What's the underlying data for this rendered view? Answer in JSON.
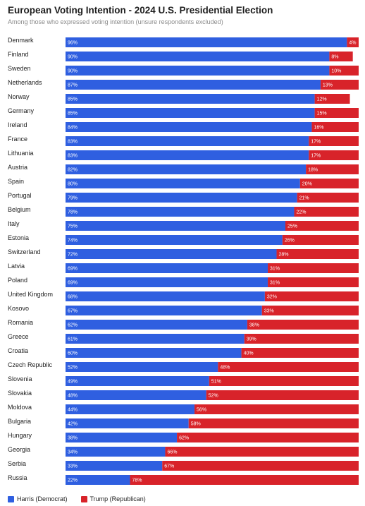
{
  "header": {
    "title": "European Voting Intention - 2024 U.S. Presidential Election",
    "subtitle": "Among those who expressed voting intention (unsure respondents excluded)"
  },
  "colors": {
    "harris": "#2f5fe0",
    "trump": "#d8232a"
  },
  "legend": {
    "harris": "Harris (Democrat)",
    "trump": "Trump (Republican)"
  },
  "chart_data": {
    "type": "bar",
    "orientation": "horizontal",
    "stacked": true,
    "title": "European Voting Intention - 2024 U.S. Presidential Election",
    "subtitle": "Among those who expressed voting intention (unsure respondents excluded)",
    "categories": [
      "Denmark",
      "Finland",
      "Sweden",
      "Netherlands",
      "Norway",
      "Germany",
      "Ireland",
      "France",
      "Lithuania",
      "Austria",
      "Spain",
      "Portugal",
      "Belgium",
      "Italy",
      "Estonia",
      "Switzerland",
      "Latvia",
      "Poland",
      "United Kingdom",
      "Kosovo",
      "Romania",
      "Greece",
      "Croatia",
      "Czech Republic",
      "Slovenia",
      "Slovakia",
      "Moldova",
      "Bulgaria",
      "Hungary",
      "Georgia",
      "Serbia",
      "Russia"
    ],
    "series": [
      {
        "name": "Harris (Democrat)",
        "values": [
          96,
          90,
          90,
          87,
          85,
          85,
          84,
          83,
          83,
          82,
          80,
          79,
          78,
          75,
          74,
          72,
          69,
          69,
          68,
          67,
          62,
          61,
          60,
          52,
          49,
          48,
          44,
          42,
          38,
          34,
          33,
          22
        ]
      },
      {
        "name": "Trump (Republican)",
        "values": [
          4,
          8,
          10,
          13,
          12,
          15,
          16,
          17,
          17,
          18,
          20,
          21,
          22,
          25,
          26,
          28,
          31,
          31,
          32,
          33,
          38,
          39,
          40,
          48,
          51,
          52,
          56,
          58,
          62,
          66,
          67,
          78
        ]
      }
    ],
    "labels": {
      "harris": [
        "96%",
        "90%",
        "90%",
        "87%",
        "85%",
        "85%",
        "84%",
        "83%",
        "83%",
        "82%",
        "80%",
        "79%",
        "78%",
        "75%",
        "74%",
        "72%",
        "69%",
        "69%",
        "68%",
        "67%",
        "62%",
        "61%",
        "60%",
        "52%",
        "49%",
        "48%",
        "44%",
        "42%",
        "38%",
        "34%",
        "33%",
        "22%"
      ],
      "trump": [
        "4%",
        "8%",
        "10%",
        "13%",
        "12%",
        "15%",
        "16%",
        "17%",
        "17%",
        "18%",
        "20%",
        "21%",
        "22%",
        "25%",
        "26%",
        "28%",
        "31%",
        "31%",
        "32%",
        "33%",
        "38%",
        "39%",
        "40%",
        "48%",
        "51%",
        "52%",
        "56%",
        "58%",
        "62%",
        "66%",
        "67%",
        "78%"
      ]
    },
    "xlim": [
      0,
      100
    ],
    "grid": false,
    "legend_position": "bottom-left"
  }
}
